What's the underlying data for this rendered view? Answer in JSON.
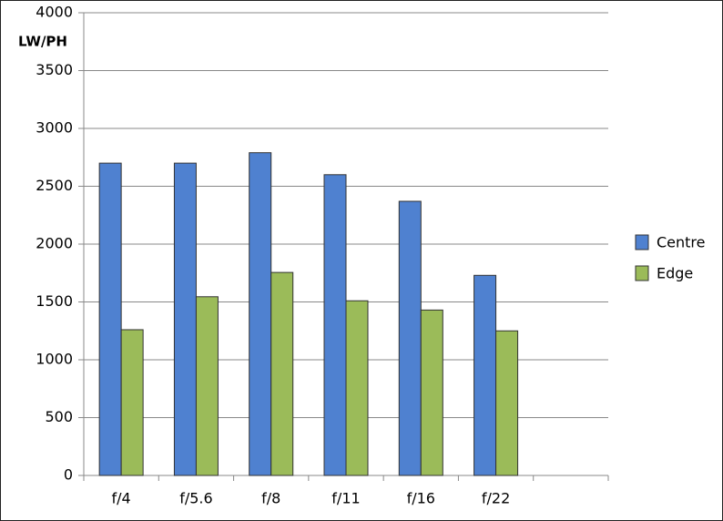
{
  "chart_data": {
    "type": "bar",
    "y_label": "LW/PH",
    "categories": [
      "f/4",
      "f/5.6",
      "f/8",
      "f/11",
      "f/16",
      "f/22",
      null
    ],
    "series": [
      {
        "name": "Centre",
        "color": "#4f81d0",
        "values": [
          2700,
          2700,
          2790,
          2600,
          2370,
          1730,
          null
        ]
      },
      {
        "name": "Edge",
        "color": "#9bbb59",
        "values": [
          1260,
          1545,
          1755,
          1510,
          1430,
          1250,
          null
        ]
      }
    ],
    "ylim": [
      0,
      4000
    ],
    "yticks": [
      0,
      500,
      1000,
      1500,
      2000,
      2500,
      3000,
      3500,
      4000
    ],
    "grid": true,
    "legend": "right"
  }
}
